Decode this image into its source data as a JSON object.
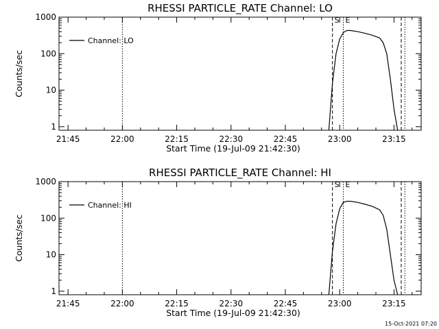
{
  "footer_stamp": "15-Oct-2021 07:20",
  "chart_data": [
    {
      "type": "line",
      "title": "RHESSI PARTICLE_RATE Channel: LO",
      "xlabel": "Start Time (19-Jul-09 21:42:30)",
      "ylabel": "Counts/sec",
      "yscale": "log",
      "ylim": [
        0.8,
        1000
      ],
      "xlim": [
        "21:42:30",
        "23:22:30"
      ],
      "x_ticks": [
        "21:45",
        "22:00",
        "22:15",
        "22:30",
        "22:45",
        "23:00",
        "23:15"
      ],
      "y_ticks": [
        "1",
        "10",
        "100",
        "1000"
      ],
      "legend": {
        "entry": "Channel: LO",
        "position": "top-left"
      },
      "markers": [
        {
          "label": "S",
          "time": "22:58:00",
          "style": "dashed"
        },
        {
          "label": "E",
          "time": "23:01:00",
          "style": "dotted"
        }
      ],
      "extra_lines": [
        {
          "time": "22:00:00",
          "style": "dotted"
        },
        {
          "time": "23:17:00",
          "style": "dashed"
        },
        {
          "time": "23:18:00",
          "style": "dotted"
        }
      ],
      "series": [
        {
          "name": "Channel: LO",
          "x": [
            "22:57:00",
            "22:58:00",
            "22:59:00",
            "23:00:00",
            "23:01:00",
            "23:02:00",
            "23:03:00",
            "23:05:00",
            "23:07:00",
            "23:09:00",
            "23:11:00",
            "23:12:00",
            "23:13:00",
            "23:14:00",
            "23:15:00",
            "23:16:00"
          ],
          "y": [
            0.8,
            15,
            100,
            250,
            380,
            430,
            430,
            400,
            360,
            320,
            270,
            200,
            100,
            20,
            3,
            0.8
          ]
        }
      ]
    },
    {
      "type": "line",
      "title": "RHESSI PARTICLE_RATE Channel: HI",
      "xlabel": "Start Time (19-Jul-09 21:42:30)",
      "ylabel": "Counts/sec",
      "yscale": "log",
      "ylim": [
        0.8,
        1000
      ],
      "xlim": [
        "21:42:30",
        "23:22:30"
      ],
      "x_ticks": [
        "21:45",
        "22:00",
        "22:15",
        "22:30",
        "22:45",
        "23:00",
        "23:15"
      ],
      "y_ticks": [
        "1",
        "10",
        "100",
        "1000"
      ],
      "legend": {
        "entry": "Channel: HI",
        "position": "top-left"
      },
      "markers": [
        {
          "label": "S",
          "time": "22:58:00",
          "style": "dashed"
        },
        {
          "label": "E",
          "time": "23:01:00",
          "style": "dotted"
        }
      ],
      "extra_lines": [
        {
          "time": "22:00:00",
          "style": "dotted"
        },
        {
          "time": "23:17:00",
          "style": "dashed"
        },
        {
          "time": "23:18:00",
          "style": "dotted"
        }
      ],
      "series": [
        {
          "name": "Channel: HI",
          "x": [
            "22:57:00",
            "22:58:00",
            "22:59:00",
            "23:00:00",
            "23:01:00",
            "23:02:00",
            "23:03:00",
            "23:05:00",
            "23:07:00",
            "23:09:00",
            "23:11:00",
            "23:12:00",
            "23:13:00",
            "23:14:00",
            "23:15:00",
            "23:16:00"
          ],
          "y": [
            0.8,
            12,
            70,
            180,
            270,
            290,
            290,
            270,
            240,
            210,
            170,
            120,
            50,
            10,
            2,
            0.8
          ]
        }
      ]
    }
  ]
}
